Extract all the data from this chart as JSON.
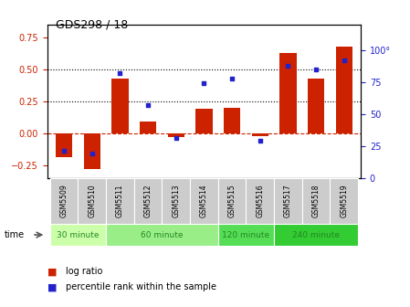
{
  "title": "GDS298 / 18",
  "samples": [
    "GSM5509",
    "GSM5510",
    "GSM5511",
    "GSM5512",
    "GSM5513",
    "GSM5514",
    "GSM5515",
    "GSM5516",
    "GSM5517",
    "GSM5518",
    "GSM5519"
  ],
  "log_ratio": [
    -0.19,
    -0.28,
    0.43,
    0.09,
    -0.03,
    0.19,
    0.2,
    -0.02,
    0.63,
    0.43,
    0.68
  ],
  "percentile": [
    21,
    19,
    82,
    57,
    31,
    74,
    78,
    29,
    88,
    85,
    92
  ],
  "groups": [
    {
      "label": "30 minute",
      "start": 0,
      "end": 2,
      "color": "#ccffaa"
    },
    {
      "label": "60 minute",
      "start": 2,
      "end": 6,
      "color": "#99ee88"
    },
    {
      "label": "120 minute",
      "start": 6,
      "end": 8,
      "color": "#55dd55"
    },
    {
      "label": "240 minute",
      "start": 8,
      "end": 11,
      "color": "#33cc33"
    }
  ],
  "bar_color": "#cc2200",
  "dot_color": "#2222cc",
  "ylim_left": [
    -0.35,
    0.85
  ],
  "ylim_right": [
    0,
    120
  ],
  "yticks_left": [
    -0.25,
    0,
    0.25,
    0.5,
    0.75
  ],
  "yticks_right": [
    0,
    25,
    50,
    75,
    100
  ],
  "hlines": [
    0.25,
    0.5
  ],
  "bar_width": 0.6,
  "sample_cell_color": "#cccccc",
  "time_label_color": "#228822"
}
